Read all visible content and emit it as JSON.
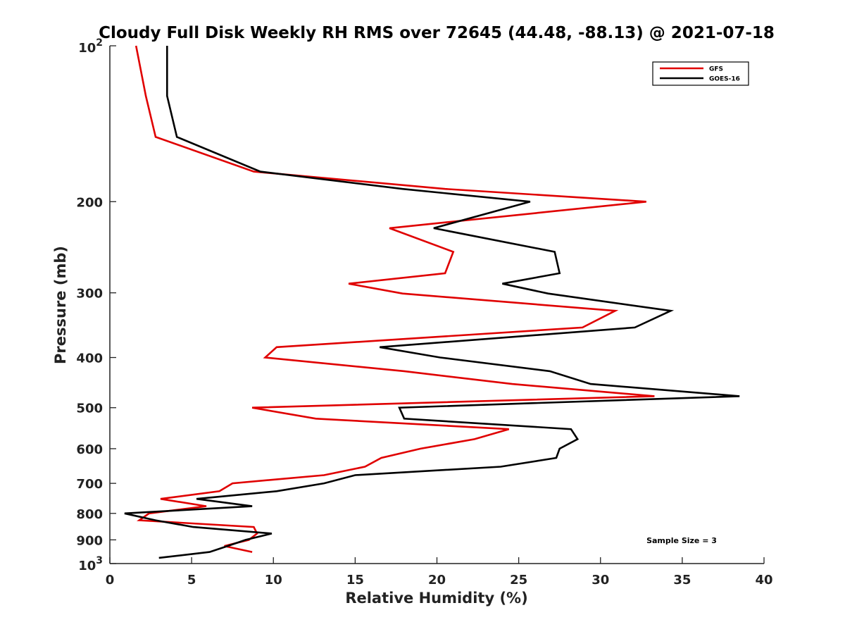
{
  "chart_data": {
    "type": "line",
    "title": "Cloudy Full Disk Weekly RH RMS over 72645 (44.48, -88.13) @ 2021-07-18",
    "xlabel": "Relative Humidity (%)",
    "ylabel": "Pressure (mb)",
    "xlim": [
      0,
      40
    ],
    "ylim": [
      100,
      1000
    ],
    "y_scale": "log",
    "y_reversed": true,
    "grid": false,
    "legend_position": "top-right",
    "x_ticks": [
      "0",
      "5",
      "10",
      "15",
      "20",
      "25",
      "30",
      "35",
      "40"
    ],
    "y_ticks": [
      {
        "value": 100,
        "base": "10",
        "exp": "2"
      },
      {
        "value": 200,
        "label": "200"
      },
      {
        "value": 300,
        "label": "300"
      },
      {
        "value": 400,
        "label": "400"
      },
      {
        "value": 500,
        "label": "500"
      },
      {
        "value": 600,
        "label": "600"
      },
      {
        "value": 700,
        "label": "700"
      },
      {
        "value": 800,
        "label": "800"
      },
      {
        "value": 900,
        "label": "900"
      },
      {
        "value": 1000,
        "base": "10",
        "exp": "3"
      }
    ],
    "annotation": "Sample Size = 3",
    "series": [
      {
        "name": "GFS",
        "color": "#e00000",
        "points": [
          [
            1.6,
            100
          ],
          [
            2.2,
            125
          ],
          [
            2.8,
            150
          ],
          [
            8.8,
            175
          ],
          [
            20.5,
            189
          ],
          [
            32.8,
            200
          ],
          [
            17.1,
            225
          ],
          [
            21.0,
            250
          ],
          [
            20.5,
            275
          ],
          [
            14.6,
            288
          ],
          [
            17.9,
            301
          ],
          [
            30.9,
            325
          ],
          [
            28.9,
            350
          ],
          [
            10.2,
            382
          ],
          [
            9.5,
            400
          ],
          [
            18.0,
            425
          ],
          [
            24.6,
            450
          ],
          [
            33.3,
            475
          ],
          [
            8.7,
            500
          ],
          [
            12.6,
            525
          ],
          [
            24.4,
            550
          ],
          [
            22.3,
            575
          ],
          [
            19.0,
            600
          ],
          [
            16.6,
            625
          ],
          [
            15.6,
            650
          ],
          [
            13.1,
            675
          ],
          [
            7.5,
            700
          ],
          [
            6.7,
            725
          ],
          [
            3.1,
            750
          ],
          [
            5.9,
            775
          ],
          [
            2.4,
            800
          ],
          [
            1.8,
            825
          ],
          [
            8.8,
            850
          ],
          [
            9.0,
            875
          ],
          [
            8.5,
            900
          ],
          [
            7.0,
            925
          ],
          [
            8.7,
            950
          ]
        ]
      },
      {
        "name": "GOES-16",
        "color": "#000000",
        "points": [
          [
            3.5,
            100
          ],
          [
            3.5,
            125
          ],
          [
            4.1,
            150
          ],
          [
            9.2,
            175
          ],
          [
            17.9,
            189
          ],
          [
            25.7,
            200
          ],
          [
            19.8,
            225
          ],
          [
            27.2,
            250
          ],
          [
            27.5,
            275
          ],
          [
            24.0,
            288
          ],
          [
            26.8,
            301
          ],
          [
            34.3,
            325
          ],
          [
            32.1,
            350
          ],
          [
            16.5,
            382
          ],
          [
            20.2,
            400
          ],
          [
            26.9,
            425
          ],
          [
            29.4,
            450
          ],
          [
            38.5,
            475
          ],
          [
            17.7,
            500
          ],
          [
            18.0,
            525
          ],
          [
            28.2,
            550
          ],
          [
            28.6,
            575
          ],
          [
            27.5,
            600
          ],
          [
            27.3,
            625
          ],
          [
            23.9,
            650
          ],
          [
            15.0,
            675
          ],
          [
            13.1,
            700
          ],
          [
            10.2,
            725
          ],
          [
            5.3,
            750
          ],
          [
            8.7,
            775
          ],
          [
            0.9,
            800
          ],
          [
            2.8,
            825
          ],
          [
            5.1,
            850
          ],
          [
            9.9,
            875
          ],
          [
            8.3,
            900
          ],
          [
            7.2,
            925
          ],
          [
            6.1,
            950
          ],
          [
            3.0,
            975
          ]
        ]
      }
    ]
  }
}
